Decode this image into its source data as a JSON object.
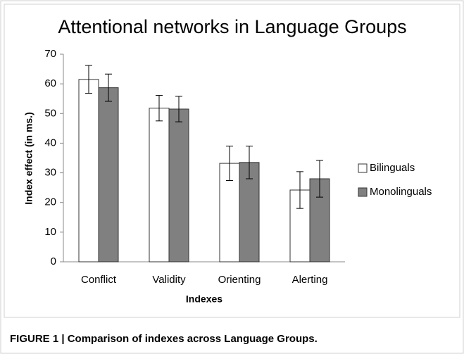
{
  "chart_data": {
    "type": "bar",
    "title": "Attentional networks in Language Groups",
    "x_label": "Indexes",
    "y_label": "Index effect (in ms.)",
    "categories": [
      "Conflict",
      "Validity",
      "Orienting",
      "Alerting"
    ],
    "series": [
      {
        "name": "Bilinguals",
        "color": "#ffffff",
        "values": [
          61.5,
          51.8,
          33.2,
          24.2
        ],
        "errors": [
          4.7,
          4.3,
          5.8,
          6.2
        ]
      },
      {
        "name": "Monolinguals",
        "color": "#808080",
        "values": [
          58.7,
          51.5,
          33.5,
          28.0
        ],
        "errors": [
          4.6,
          4.3,
          5.5,
          6.2
        ]
      }
    ],
    "ylim": [
      0,
      70
    ],
    "yticks": [
      0,
      10,
      20,
      30,
      40,
      50,
      60,
      70
    ],
    "legend": "right",
    "grid": false
  },
  "caption": "FIGURE 1 | Comparison of indexes across Language Groups."
}
